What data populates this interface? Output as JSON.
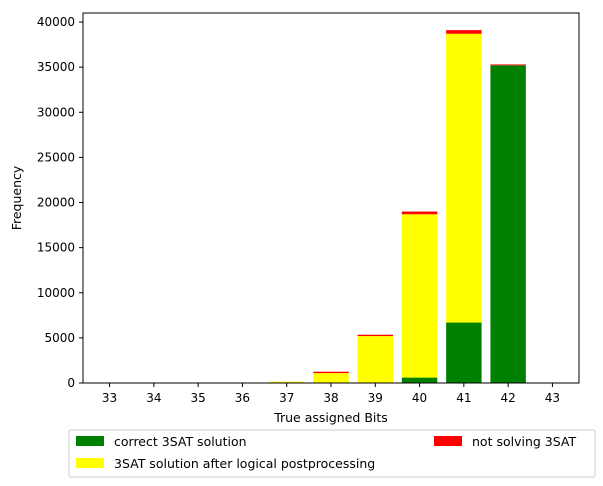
{
  "chart_data": {
    "type": "bar",
    "stacked": true,
    "title": "",
    "xlabel": "True assigned Bits",
    "ylabel": "Frequency",
    "categories": [
      "33",
      "34",
      "35",
      "36",
      "37",
      "38",
      "39",
      "40",
      "41",
      "42",
      "43"
    ],
    "ylim": [
      0,
      41000
    ],
    "yticks": [
      0,
      5000,
      10000,
      15000,
      20000,
      25000,
      30000,
      35000,
      40000
    ],
    "grid": false,
    "legend_position": "below-center",
    "series": [
      {
        "name": "correct 3SAT solution",
        "color": "#008000",
        "values": [
          0,
          0,
          0,
          0,
          0,
          0,
          0,
          600,
          6700,
          35200,
          0
        ]
      },
      {
        "name": "3SAT solution after logical postprocessing",
        "color": "#ffff00",
        "values": [
          0,
          0,
          0,
          0,
          150,
          1100,
          5200,
          18100,
          32000,
          0,
          0
        ]
      },
      {
        "name": "not solving 3SAT",
        "color": "#ff0000",
        "values": [
          0,
          0,
          0,
          0,
          0,
          150,
          150,
          300,
          400,
          100,
          0
        ]
      }
    ]
  }
}
